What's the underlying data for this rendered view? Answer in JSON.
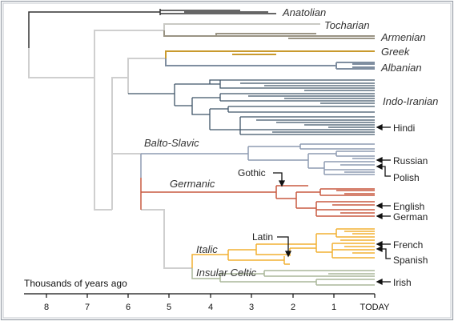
{
  "groups": {
    "anatolian": "Anatolian",
    "tocharian": "Tocharian",
    "armenian": "Armenian",
    "greek": "Greek",
    "albanian": "Albanian",
    "indo_iranian": "Indo-Iranian",
    "balto_slavic": "Balto-Slavic",
    "germanic": "Germanic",
    "italic": "Italic",
    "insular_celtic": "Insular Celtic"
  },
  "languages": {
    "hindi": "Hindi",
    "russian": "Russian",
    "polish": "Polish",
    "gothic": "Gothic",
    "english": "English",
    "german": "German",
    "latin": "Latin",
    "french": "French",
    "spanish": "Spanish",
    "irish": "Irish"
  },
  "axis": {
    "label": "Thousands of years ago",
    "ticks": [
      "8",
      "7",
      "6",
      "5",
      "4",
      "3",
      "2",
      "1",
      "TODAY"
    ]
  },
  "colors": {
    "anatolian": "#333333",
    "tocharian": "#c9c9c4",
    "armenian": "#9a9484",
    "greek": "#c99a2e",
    "albanian": "#7f8ea0",
    "indo_iranian": "#3f5468",
    "balto_slavic": "#8e9bb2",
    "germanic": "#c95a40",
    "italic": "#f2b032",
    "insular_celtic": "#aab79a",
    "backbone": "#cfcfcf"
  }
}
